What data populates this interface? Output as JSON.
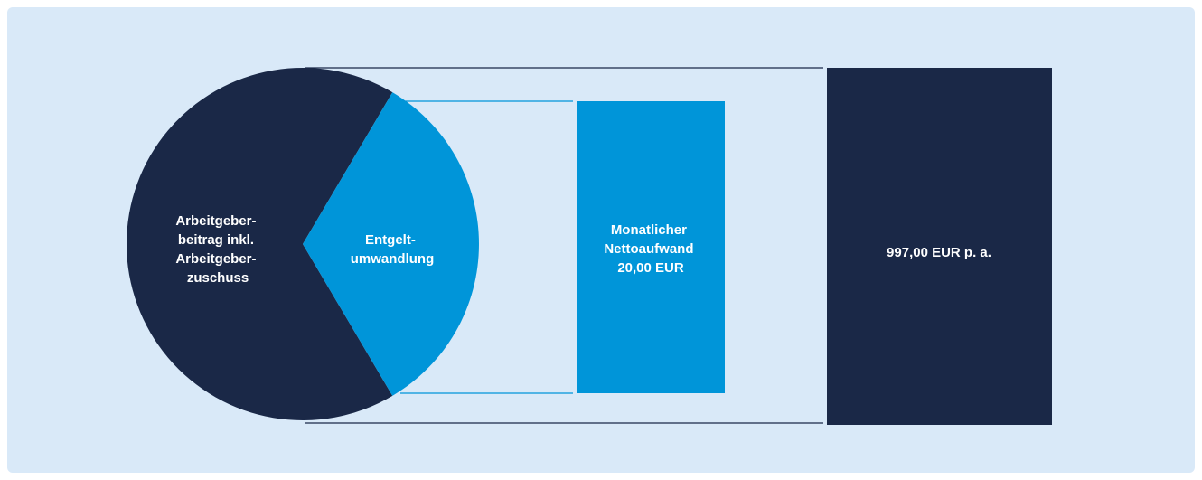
{
  "colors": {
    "background": "#d9e9f8",
    "dark_navy": "#1a2847",
    "accent_blue": "#0095d9",
    "text_light": "#ffffff",
    "text_dark": "#1a2847"
  },
  "diagram": {
    "pie": {
      "employer_segment": {
        "label_lines": [
          "Arbeitgeber-",
          "beitrag inkl.",
          "Arbeitgeber-",
          "zuschuss"
        ],
        "share": 0.67
      },
      "conversion_segment": {
        "label_lines": [
          "Entgelt-",
          "umwandlung"
        ],
        "share": 0.33
      }
    },
    "net_expense_box": {
      "label_lines": [
        "Monatlicher",
        "Nettoaufwand",
        "20,00 EUR"
      ]
    },
    "annual_total_box": {
      "label": "997,00 EUR p. a."
    }
  }
}
